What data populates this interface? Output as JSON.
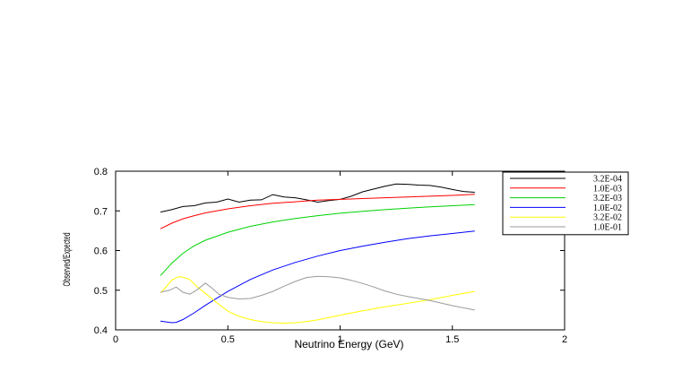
{
  "chart_data": {
    "type": "line",
    "xlabel": "Neutrino Energy (GeV)",
    "ylabel": "Observed/Expected",
    "xlim": [
      0,
      2
    ],
    "ylim": [
      0.4,
      0.8
    ],
    "x_ticks": [
      0,
      0.5,
      1,
      1.5,
      2
    ],
    "x_tick_labels": [
      "0",
      "0.5",
      "1",
      "1.5",
      "2"
    ],
    "y_ticks": [
      0.4,
      0.5,
      0.6,
      0.7,
      0.8
    ],
    "y_tick_labels": [
      "0.4",
      "0.5",
      "0.6",
      "0.7",
      "0.8"
    ],
    "grid": false,
    "legend_position": "top-right, outside plot",
    "series": [
      {
        "name": "3.2E-04",
        "color": "#000000",
        "x": [
          0.2,
          0.25,
          0.3,
          0.35,
          0.4,
          0.45,
          0.5,
          0.55,
          0.6,
          0.65,
          0.7,
          0.75,
          0.8,
          0.85,
          0.9,
          0.95,
          1.0,
          1.05,
          1.1,
          1.15,
          1.2,
          1.25,
          1.3,
          1.35,
          1.4,
          1.45,
          1.5,
          1.55,
          1.6
        ],
        "y": [
          0.697,
          0.703,
          0.711,
          0.713,
          0.72,
          0.722,
          0.73,
          0.722,
          0.727,
          0.728,
          0.741,
          0.735,
          0.733,
          0.728,
          0.722,
          0.726,
          0.729,
          0.737,
          0.748,
          0.755,
          0.762,
          0.768,
          0.767,
          0.765,
          0.764,
          0.76,
          0.754,
          0.749,
          0.747
        ]
      },
      {
        "name": "1.0E-03",
        "color": "#ff0000",
        "x": [
          0.2,
          0.25,
          0.3,
          0.35,
          0.4,
          0.5,
          0.6,
          0.7,
          0.8,
          0.9,
          1.0,
          1.1,
          1.2,
          1.3,
          1.4,
          1.5,
          1.6
        ],
        "y": [
          0.655,
          0.669,
          0.68,
          0.688,
          0.695,
          0.705,
          0.713,
          0.719,
          0.723,
          0.727,
          0.729,
          0.731,
          0.733,
          0.735,
          0.737,
          0.739,
          0.742
        ]
      },
      {
        "name": "3.2E-03",
        "color": "#00d200",
        "x": [
          0.2,
          0.25,
          0.3,
          0.35,
          0.4,
          0.5,
          0.6,
          0.7,
          0.8,
          0.9,
          1.0,
          1.1,
          1.2,
          1.3,
          1.4,
          1.5,
          1.6
        ],
        "y": [
          0.537,
          0.568,
          0.593,
          0.612,
          0.626,
          0.646,
          0.661,
          0.672,
          0.681,
          0.688,
          0.694,
          0.699,
          0.703,
          0.707,
          0.71,
          0.713,
          0.716
        ]
      },
      {
        "name": "1.0E-02",
        "color": "#0000ff",
        "x": [
          0.2,
          0.25,
          0.27,
          0.3,
          0.35,
          0.4,
          0.5,
          0.6,
          0.7,
          0.8,
          0.9,
          1.0,
          1.1,
          1.2,
          1.3,
          1.4,
          1.5,
          1.6
        ],
        "y": [
          0.422,
          0.418,
          0.419,
          0.426,
          0.443,
          0.462,
          0.497,
          0.527,
          0.551,
          0.57,
          0.586,
          0.6,
          0.611,
          0.621,
          0.63,
          0.637,
          0.643,
          0.649
        ]
      },
      {
        "name": "3.2E-02",
        "color": "#ffff00",
        "x": [
          0.2,
          0.22,
          0.25,
          0.28,
          0.3,
          0.33,
          0.36,
          0.4,
          0.45,
          0.5,
          0.55,
          0.6,
          0.65,
          0.7,
          0.75,
          0.8,
          0.85,
          0.9,
          0.95,
          1.0,
          1.1,
          1.2,
          1.3,
          1.4,
          1.5,
          1.6
        ],
        "y": [
          0.493,
          0.505,
          0.525,
          0.534,
          0.533,
          0.527,
          0.51,
          0.492,
          0.469,
          0.447,
          0.434,
          0.426,
          0.421,
          0.418,
          0.417,
          0.418,
          0.421,
          0.425,
          0.431,
          0.437,
          0.448,
          0.458,
          0.467,
          0.476,
          0.487,
          0.497
        ]
      },
      {
        "name": "1.0E-01",
        "color": "#9a9a9a",
        "x": [
          0.2,
          0.24,
          0.27,
          0.3,
          0.33,
          0.36,
          0.4,
          0.43,
          0.46,
          0.5,
          0.55,
          0.6,
          0.65,
          0.7,
          0.75,
          0.8,
          0.85,
          0.9,
          0.95,
          1.0,
          1.05,
          1.1,
          1.15,
          1.2,
          1.25,
          1.3,
          1.35,
          1.4,
          1.5,
          1.6
        ],
        "y": [
          0.495,
          0.5,
          0.508,
          0.495,
          0.49,
          0.5,
          0.518,
          0.505,
          0.49,
          0.482,
          0.478,
          0.479,
          0.487,
          0.497,
          0.51,
          0.522,
          0.532,
          0.535,
          0.534,
          0.531,
          0.525,
          0.517,
          0.508,
          0.498,
          0.49,
          0.484,
          0.479,
          0.474,
          0.461,
          0.45
        ]
      }
    ]
  }
}
